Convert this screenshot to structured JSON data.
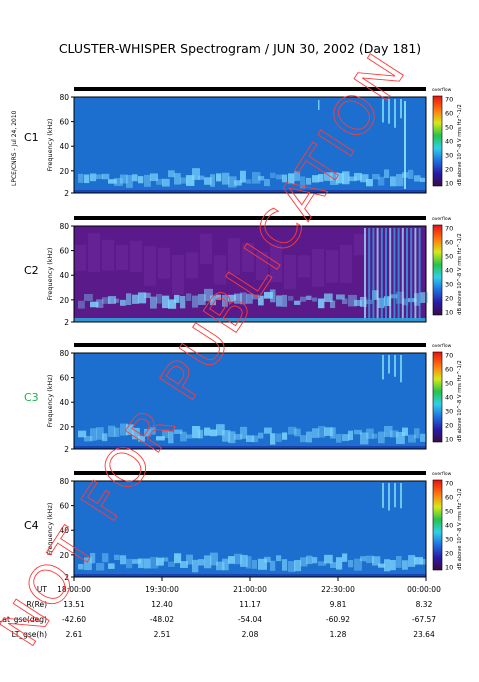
{
  "title": "CLUSTER-WHISPER Spectrogram / JUN 30, 2002 (Day 181)",
  "side_label": "LPCE/CNRS - Jul 24, 2010",
  "watermark": "NOT FOR PUBLICATION",
  "colors": {
    "background_c1": "#1d6fcf",
    "background_c2": "#5a1a8a",
    "band": "#7fd8ff",
    "axis": "#000000",
    "c3_label": "#1fb34a"
  },
  "chart_data": [
    {
      "type": "heatmap",
      "panel": "C1",
      "ylabel": "Frequency (kHz)",
      "yticks": [
        2,
        20,
        40,
        60,
        80
      ],
      "ylim": [
        2,
        80
      ],
      "colorbar_ticks": [
        10,
        20,
        30,
        40,
        50,
        60,
        70
      ],
      "colorbar_label": "dB above 10^-8 V rms Hz^-1/2",
      "colorbar_top": "overflow"
    },
    {
      "type": "heatmap",
      "panel": "C2",
      "ylabel": "Frequency (kHz)",
      "yticks": [
        2,
        20,
        40,
        60,
        80
      ],
      "ylim": [
        2,
        80
      ],
      "colorbar_ticks": [
        10,
        20,
        30,
        40,
        50,
        60,
        70
      ],
      "colorbar_label": "dB above 10^-8 V rms Hz^-1/2",
      "colorbar_top": "overflow"
    },
    {
      "type": "heatmap",
      "panel": "C3",
      "ylabel": "Frequency (kHz)",
      "yticks": [
        2,
        20,
        40,
        60,
        80
      ],
      "ylim": [
        2,
        80
      ],
      "colorbar_ticks": [
        10,
        20,
        30,
        40,
        50,
        60,
        70
      ],
      "colorbar_label": "dB above 10^-8 V rms Hz^-1/2",
      "colorbar_top": "overflow"
    },
    {
      "type": "heatmap",
      "panel": "C4",
      "ylabel": "Frequency (kHz)",
      "yticks": [
        2,
        20,
        40,
        60,
        80
      ],
      "ylim": [
        2,
        80
      ],
      "colorbar_ticks": [
        10,
        20,
        30,
        40,
        50,
        60,
        70
      ],
      "colorbar_label": "dB above 10^-8 V rms Hz^-1/2",
      "colorbar_top": "overflow"
    }
  ],
  "ephemeris": {
    "labels": [
      "UT",
      "R(Re)",
      "Lat_gse(deg)",
      "LT_gse(h)"
    ],
    "columns": [
      [
        "18:00:00",
        "13.51",
        "-42.60",
        "2.61"
      ],
      [
        "19:30:00",
        "12.40",
        "-48.02",
        "2.51"
      ],
      [
        "21:00:00",
        "11.17",
        "-54.04",
        "2.08"
      ],
      [
        "22:30:00",
        "9.81",
        "-60.92",
        "1.28"
      ],
      [
        "00:00:00",
        "8.32",
        "-67.57",
        "23.64"
      ]
    ]
  }
}
